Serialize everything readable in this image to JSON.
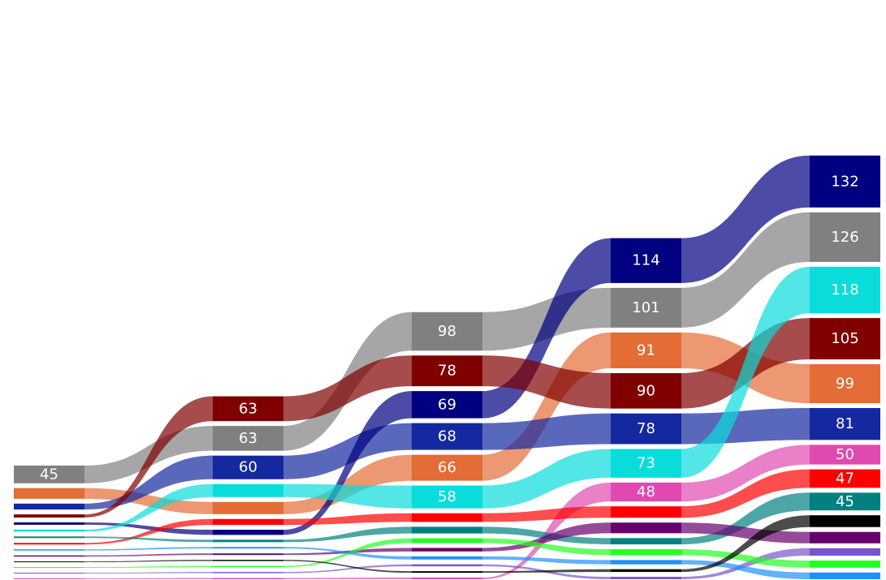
{
  "chart_data": {
    "type": "bump-sankey",
    "title": "",
    "xlabel": "",
    "ylabel": "",
    "grid": false,
    "legend": "none",
    "stages": 5,
    "series": [
      {
        "name": "",
        "color": "#808080",
        "values": [
          45,
          63,
          98,
          101,
          126
        ]
      },
      {
        "name": "",
        "color": "#E36C37",
        "values": [
          27,
          31,
          66,
          91,
          99
        ]
      },
      {
        "name": "",
        "color": "#1428A0",
        "values": [
          15,
          60,
          68,
          78,
          81
        ]
      },
      {
        "name": "",
        "color": "#000080",
        "values": [
          6,
          13,
          69,
          114,
          132
        ]
      },
      {
        "name": "",
        "color": "#800000",
        "values": [
          8,
          63,
          78,
          90,
          105
        ]
      },
      {
        "name": "",
        "color": "#0ADCDC",
        "values": [
          5,
          33,
          58,
          73,
          118
        ]
      },
      {
        "name": "",
        "color": "#E04AB0",
        "values": [
          2,
          3,
          4,
          48,
          50
        ]
      },
      {
        "name": "",
        "color": "#FF0000",
        "values": [
          4,
          15,
          22,
          29,
          47
        ]
      },
      {
        "name": "",
        "color": "#008080",
        "values": [
          4,
          6,
          17,
          16,
          45
        ]
      },
      {
        "name": "",
        "color": "#66006E",
        "values": [
          3,
          4,
          9,
          27,
          29
        ]
      },
      {
        "name": "",
        "color": "#7755CC",
        "values": [
          2,
          3,
          5,
          6,
          19
        ]
      },
      {
        "name": "",
        "color": "#22FF22",
        "values": [
          2,
          3,
          12,
          15,
          18
        ]
      },
      {
        "name": "",
        "color": "#1E90FF",
        "values": [
          3,
          4,
          8,
          11,
          17
        ]
      },
      {
        "name": "",
        "color": "#000000",
        "values": [
          2,
          3,
          4,
          7,
          30
        ]
      }
    ],
    "labels_shown_min": 40
  }
}
